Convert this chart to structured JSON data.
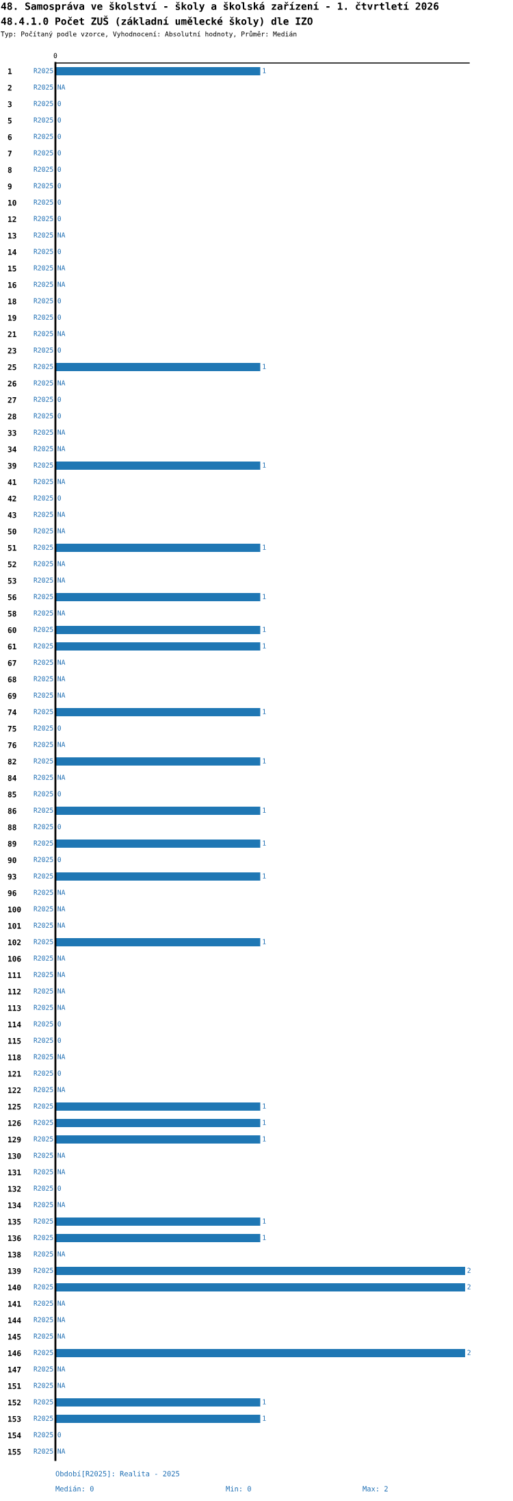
{
  "chart_data": {
    "type": "bar",
    "orientation": "horizontal",
    "title": "48. Samospráva ve školství - školy a školská zařízení - 1. čtvrtletí 2026",
    "subtitle": "48.4.1.0 Počet ZUŠ (základní umělecké školy) dle IZO",
    "annotations": [
      "Typ: Počítaný podle vzorce, Vyhodnocení: Absolutní hodnoty, Průměr: Medián",
      "Období[R2025]: Realita - 2025",
      "Medián: 0",
      "Min: 0",
      "Max: 2",
      "0"
    ],
    "categories": [
      "1",
      "2",
      "3",
      "5",
      "6",
      "7",
      "8",
      "9",
      "10",
      "12",
      "13",
      "14",
      "15",
      "16",
      "18",
      "19",
      "21",
      "23",
      "25",
      "26",
      "27",
      "28",
      "33",
      "34",
      "39",
      "41",
      "42",
      "43",
      "50",
      "51",
      "52",
      "53",
      "56",
      "58",
      "60",
      "61",
      "67",
      "68",
      "69",
      "74",
      "75",
      "76",
      "82",
      "84",
      "85",
      "86",
      "88",
      "89",
      "90",
      "93",
      "96",
      "100",
      "101",
      "102",
      "106",
      "111",
      "112",
      "113",
      "114",
      "115",
      "118",
      "121",
      "122",
      "125",
      "126",
      "129",
      "130",
      "131",
      "132",
      "134",
      "135",
      "136",
      "138",
      "139",
      "140",
      "141",
      "144",
      "145",
      "146",
      "147",
      "151",
      "152",
      "153",
      "154",
      "155"
    ],
    "series": [
      {
        "name": "R2025",
        "color": "#1f77b4",
        "values": [
          1,
          null,
          0,
          0,
          0,
          0,
          0,
          0,
          0,
          0,
          null,
          0,
          null,
          null,
          0,
          0,
          null,
          0,
          1,
          null,
          0,
          0,
          null,
          null,
          1,
          null,
          0,
          null,
          null,
          1,
          null,
          null,
          1,
          null,
          1,
          1,
          null,
          null,
          null,
          1,
          0,
          null,
          1,
          null,
          0,
          1,
          0,
          1,
          0,
          1,
          null,
          null,
          null,
          1,
          null,
          null,
          null,
          null,
          0,
          0,
          null,
          0,
          null,
          1,
          1,
          1,
          null,
          null,
          0,
          null,
          1,
          1,
          null,
          2,
          2,
          null,
          null,
          null,
          2,
          null,
          null,
          1,
          1,
          0,
          null
        ],
        "value_labels": [
          "1",
          "NA",
          "0",
          "0",
          "0",
          "0",
          "0",
          "0",
          "0",
          "0",
          "NA",
          "0",
          "NA",
          "NA",
          "0",
          "0",
          "NA",
          "0",
          "1",
          "NA",
          "0",
          "0",
          "NA",
          "NA",
          "1",
          "NA",
          "0",
          "NA",
          "NA",
          "1",
          "NA",
          "NA",
          "1",
          "NA",
          "1",
          "1",
          "NA",
          "NA",
          "NA",
          "1",
          "0",
          "NA",
          "1",
          "NA",
          "0",
          "1",
          "0",
          "1",
          "0",
          "1",
          "NA",
          "NA",
          "NA",
          "1",
          "NA",
          "NA",
          "NA",
          "NA",
          "0",
          "0",
          "NA",
          "0",
          "NA",
          "1",
          "1",
          "1",
          "NA",
          "NA",
          "0",
          "NA",
          "1",
          "1",
          "NA",
          "2",
          "2",
          "NA",
          "NA",
          "NA",
          "2",
          "NA",
          "NA",
          "1",
          "1",
          "0",
          "NA"
        ]
      }
    ],
    "xlim": [
      0,
      2.02
    ],
    "grid": false,
    "legend": false
  }
}
